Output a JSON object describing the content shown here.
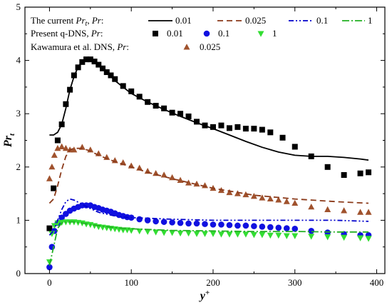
{
  "chart_data": {
    "type": "line",
    "title": "",
    "xlabel": "y",
    "xlabel_sup": "+",
    "ylabel": "Pr",
    "ylabel_sub": "t",
    "xlim": [
      -30,
      410
    ],
    "ylim": [
      0,
      5
    ],
    "xticks": [
      0,
      100,
      200,
      300,
      400
    ],
    "yticks": [
      0,
      1,
      2,
      3,
      4,
      5
    ],
    "grid": false,
    "legend_position": "top-left",
    "legend": {
      "row1": {
        "prefix": "The current ",
        "var": "Pr",
        "var_sub": "t",
        "mid": ", ",
        "var2": "Pr",
        "suffix": ":",
        "entries": [
          "0.01",
          "0.025",
          "0.1",
          "1"
        ]
      },
      "row2": {
        "prefix": "Present q-DNS, ",
        "var": "Pr",
        "suffix": ":",
        "entries": [
          "0.01",
          "0.1",
          "1"
        ]
      },
      "row3": {
        "prefix": "Kawamura et al. DNS, ",
        "var": "Pr",
        "suffix": ":",
        "entries": [
          "0.025"
        ]
      }
    },
    "series": [
      {
        "group": "model",
        "label": "0.01",
        "kind": "line",
        "color": "#000000",
        "dash": "",
        "x": [
          0,
          5,
          10,
          15,
          20,
          25,
          30,
          35,
          40,
          45,
          50,
          55,
          60,
          70,
          80,
          90,
          100,
          120,
          140,
          160,
          180,
          200,
          220,
          240,
          260,
          280,
          300,
          320,
          340,
          360,
          380,
          390
        ],
        "y": [
          2.6,
          2.6,
          2.65,
          2.8,
          3.1,
          3.45,
          3.7,
          3.88,
          3.98,
          4.0,
          4.0,
          3.98,
          3.92,
          3.78,
          3.62,
          3.5,
          3.38,
          3.22,
          3.08,
          2.95,
          2.83,
          2.72,
          2.6,
          2.48,
          2.37,
          2.28,
          2.22,
          2.2,
          2.2,
          2.18,
          2.15,
          2.13
        ]
      },
      {
        "group": "model",
        "label": "0.025",
        "kind": "line",
        "color": "#8B3A1A",
        "dash": "8,5",
        "x": [
          0,
          5,
          10,
          15,
          20,
          25,
          30,
          40,
          50,
          60,
          80,
          100,
          120,
          150,
          200,
          250,
          300,
          350,
          390
        ],
        "y": [
          1.32,
          1.4,
          1.65,
          1.95,
          2.2,
          2.32,
          2.35,
          2.35,
          2.3,
          2.22,
          2.1,
          2.0,
          1.9,
          1.78,
          1.6,
          1.47,
          1.4,
          1.35,
          1.32
        ]
      },
      {
        "group": "model",
        "label": "0.1",
        "kind": "line",
        "color": "#0000CC",
        "dash": "7,3,2,3,2,3",
        "x": [
          0,
          5,
          10,
          15,
          20,
          25,
          30,
          40,
          50,
          60,
          80,
          100,
          150,
          200,
          250,
          300,
          350,
          390
        ],
        "y": [
          0.72,
          0.8,
          1.0,
          1.2,
          1.35,
          1.4,
          1.38,
          1.3,
          1.22,
          1.15,
          1.08,
          1.05,
          1.02,
          1.0,
          1.0,
          1.0,
          1.0,
          0.98
        ]
      },
      {
        "group": "model",
        "label": "1",
        "kind": "line",
        "color": "#22B022",
        "dash": "10,3,2,3",
        "x": [
          0,
          5,
          10,
          15,
          20,
          30,
          40,
          50,
          60,
          80,
          100,
          150,
          200,
          250,
          300,
          350,
          390
        ],
        "y": [
          0.15,
          0.5,
          0.85,
          0.95,
          0.97,
          0.97,
          0.95,
          0.92,
          0.9,
          0.86,
          0.84,
          0.81,
          0.8,
          0.79,
          0.79,
          0.78,
          0.78
        ]
      },
      {
        "group": "qdns",
        "label": "0.01",
        "kind": "scatter",
        "marker": "square",
        "color": "#000000",
        "x": [
          0,
          5,
          10,
          15,
          20,
          25,
          30,
          35,
          40,
          45,
          50,
          55,
          60,
          65,
          70,
          75,
          80,
          90,
          100,
          110,
          120,
          130,
          140,
          150,
          160,
          170,
          180,
          190,
          200,
          210,
          220,
          230,
          240,
          250,
          260,
          270,
          285,
          300,
          320,
          340,
          360,
          380,
          390
        ],
        "y": [
          0.85,
          1.6,
          2.5,
          2.8,
          3.18,
          3.45,
          3.72,
          3.87,
          3.97,
          4.02,
          4.02,
          3.98,
          3.92,
          3.85,
          3.78,
          3.72,
          3.65,
          3.52,
          3.42,
          3.32,
          3.22,
          3.15,
          3.1,
          3.02,
          3.0,
          2.95,
          2.85,
          2.78,
          2.75,
          2.78,
          2.73,
          2.75,
          2.72,
          2.72,
          2.7,
          2.65,
          2.55,
          2.38,
          2.2,
          2.0,
          1.85,
          1.88,
          1.9
        ]
      },
      {
        "group": "qdns",
        "label": "0.1",
        "kind": "scatter",
        "marker": "circle",
        "color": "#1010E0",
        "x": [
          0,
          3,
          6,
          10,
          15,
          20,
          25,
          30,
          35,
          40,
          45,
          50,
          55,
          60,
          65,
          70,
          75,
          80,
          85,
          90,
          95,
          100,
          110,
          120,
          130,
          140,
          150,
          160,
          170,
          180,
          190,
          200,
          210,
          220,
          230,
          240,
          250,
          260,
          270,
          280,
          290,
          300,
          320,
          340,
          360,
          380,
          390
        ],
        "y": [
          0.12,
          0.5,
          0.8,
          0.95,
          1.05,
          1.12,
          1.18,
          1.22,
          1.25,
          1.28,
          1.28,
          1.28,
          1.25,
          1.23,
          1.2,
          1.18,
          1.16,
          1.13,
          1.1,
          1.08,
          1.06,
          1.05,
          1.02,
          1.0,
          0.98,
          0.97,
          0.96,
          0.95,
          0.94,
          0.94,
          0.93,
          0.92,
          0.92,
          0.91,
          0.9,
          0.9,
          0.89,
          0.88,
          0.87,
          0.86,
          0.85,
          0.84,
          0.8,
          0.77,
          0.74,
          0.72,
          0.72
        ]
      },
      {
        "group": "qdns",
        "label": "1",
        "kind": "scatter",
        "marker": "triangle-down",
        "color": "#33DD33",
        "x": [
          0,
          3,
          6,
          10,
          15,
          20,
          25,
          30,
          35,
          40,
          45,
          50,
          55,
          60,
          65,
          70,
          75,
          80,
          85,
          90,
          95,
          100,
          110,
          120,
          130,
          140,
          150,
          160,
          170,
          180,
          190,
          200,
          210,
          220,
          230,
          240,
          250,
          260,
          270,
          280,
          290,
          300,
          320,
          340,
          360,
          380,
          390
        ],
        "y": [
          0.22,
          0.75,
          0.9,
          0.95,
          0.96,
          0.97,
          0.97,
          0.97,
          0.96,
          0.95,
          0.93,
          0.92,
          0.9,
          0.88,
          0.87,
          0.86,
          0.85,
          0.84,
          0.83,
          0.82,
          0.82,
          0.81,
          0.8,
          0.79,
          0.78,
          0.77,
          0.77,
          0.76,
          0.76,
          0.75,
          0.75,
          0.75,
          0.74,
          0.74,
          0.74,
          0.74,
          0.73,
          0.73,
          0.72,
          0.72,
          0.71,
          0.71,
          0.7,
          0.69,
          0.68,
          0.67,
          0.66
        ]
      },
      {
        "group": "kawamura",
        "label": "0.025",
        "kind": "scatter",
        "marker": "triangle-up",
        "color": "#A0522D",
        "x": [
          0,
          3,
          6,
          10,
          15,
          20,
          25,
          30,
          40,
          50,
          60,
          70,
          80,
          90,
          100,
          110,
          120,
          130,
          140,
          150,
          160,
          170,
          180,
          190,
          200,
          210,
          220,
          230,
          240,
          250,
          260,
          270,
          280,
          290,
          300,
          320,
          340,
          360,
          380,
          390
        ],
        "y": [
          1.78,
          2.0,
          2.22,
          2.35,
          2.38,
          2.35,
          2.32,
          2.32,
          2.37,
          2.32,
          2.25,
          2.18,
          2.12,
          2.08,
          2.02,
          1.98,
          1.92,
          1.88,
          1.85,
          1.8,
          1.75,
          1.7,
          1.68,
          1.65,
          1.6,
          1.56,
          1.52,
          1.5,
          1.48,
          1.45,
          1.42,
          1.4,
          1.38,
          1.35,
          1.32,
          1.25,
          1.2,
          1.18,
          1.15,
          1.15
        ]
      }
    ]
  }
}
